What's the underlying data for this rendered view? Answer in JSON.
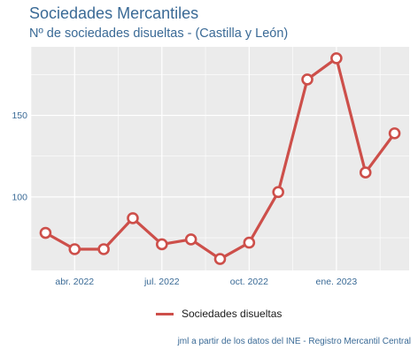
{
  "chart_data": {
    "type": "line",
    "title": "Sociedades Mercantiles",
    "subtitle": "Nº de sociedades disueltas - (Castilla y León)",
    "x": [
      "2022-03",
      "2022-04",
      "2022-05",
      "2022-06",
      "2022-07",
      "2022-08",
      "2022-09",
      "2022-10",
      "2022-11",
      "2022-12",
      "2023-01",
      "2023-02",
      "2023-03"
    ],
    "series": [
      {
        "name": "Sociedades disueltas",
        "values": [
          78,
          68,
          68,
          87,
          71,
          74,
          62,
          72,
          103,
          172,
          185,
          115,
          139
        ]
      }
    ],
    "x_ticks": [
      {
        "x": "2022-04",
        "label": "abr. 2022"
      },
      {
        "x": "2022-07",
        "label": "jul. 2022"
      },
      {
        "x": "2022-10",
        "label": "oct. 2022"
      },
      {
        "x": "2023-01",
        "label": "ene. 2023"
      }
    ],
    "y_ticks": [
      100,
      150
    ],
    "ylim": [
      55,
      192
    ],
    "grid": true,
    "legend_position": "bottom",
    "line_color": "#cd4f4a",
    "panel_color": "#ebebeb",
    "caption": "jml a partir de los datos del INE - Registro Mercantil Central"
  }
}
